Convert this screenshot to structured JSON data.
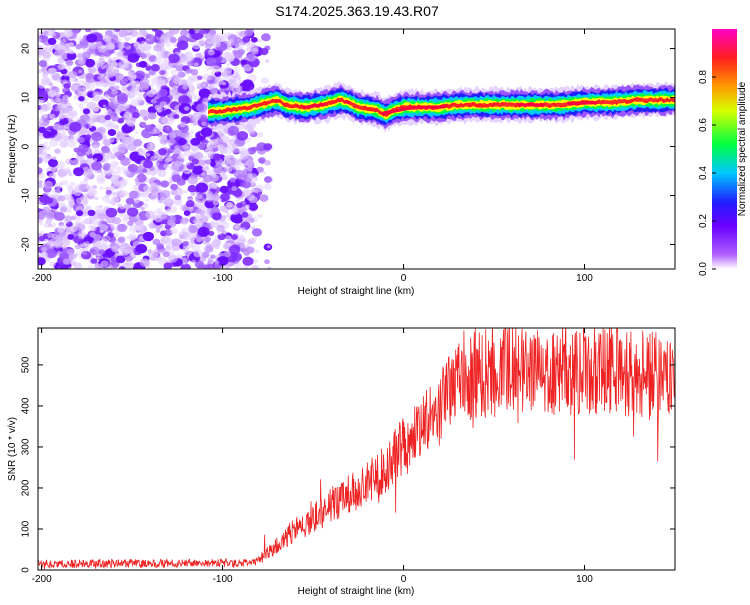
{
  "title": "S174.2025.363.19.43.R07",
  "chart_data": [
    {
      "type": "heatmap",
      "xlabel": "Height of straight line (km)",
      "ylabel": "Frequency (Hz)",
      "xlim": [
        -202,
        150
      ],
      "ylim": [
        -25,
        24
      ],
      "xticks": [
        -200,
        -100,
        0,
        100
      ],
      "yticks": [
        -20,
        -10,
        0,
        10,
        20
      ],
      "colorbar": {
        "label": "Normalized spectral amplitude",
        "range": [
          0,
          1
        ],
        "ticks": [
          "0.0",
          "0.2",
          "0.4",
          "0.6",
          "0.8"
        ],
        "colors": [
          "#ffffff",
          "#9b00ff",
          "#2a00ff",
          "#00c8ff",
          "#00ff40",
          "#ffff00",
          "#ff7f00",
          "#ff0000",
          "#ff00ff"
        ]
      },
      "noise_region_km": [
        -202,
        -82
      ],
      "carrier_track": {
        "x": [
          -108,
          -95,
          -85,
          -80,
          -70,
          -65,
          -55,
          -45,
          -35,
          -30,
          -25,
          -15,
          -10,
          -5,
          0,
          10,
          20,
          30,
          40,
          55,
          70,
          85,
          100,
          115,
          130,
          150
        ],
        "y": [
          7.0,
          7.5,
          8.0,
          8.5,
          9.5,
          8.5,
          8.0,
          8.5,
          9.5,
          9.0,
          8.0,
          7.5,
          6.5,
          7.5,
          8.0,
          8.0,
          8.0,
          8.5,
          8.5,
          8.5,
          8.5,
          8.5,
          9.0,
          9.0,
          9.5,
          9.5
        ]
      }
    },
    {
      "type": "line",
      "xlabel": "Height of straight line (km)",
      "ylabel": "SNR (10 * v/v)",
      "xlim": [
        -202,
        150
      ],
      "ylim": [
        0,
        590
      ],
      "xticks": [
        -200,
        -100,
        0,
        100
      ],
      "yticks": [
        0,
        100,
        200,
        300,
        400,
        500
      ],
      "series": [
        {
          "name": "SNR",
          "color": "#ee2222",
          "x": [
            -202,
            -180,
            -160,
            -140,
            -120,
            -100,
            -85,
            -80,
            -75,
            -70,
            -65,
            -60,
            -55,
            -50,
            -45,
            -40,
            -30,
            -20,
            -10,
            0,
            10,
            20,
            25,
            30,
            35,
            40,
            50,
            60,
            70,
            80,
            90,
            100,
            110,
            120,
            130,
            140,
            150
          ],
          "values": [
            15,
            15,
            16,
            16,
            17,
            17,
            18,
            25,
            40,
            60,
            80,
            100,
            110,
            125,
            140,
            160,
            185,
            210,
            250,
            300,
            340,
            390,
            420,
            450,
            470,
            480,
            485,
            490,
            490,
            495,
            490,
            490,
            485,
            480,
            475,
            470,
            470
          ]
        }
      ]
    }
  ]
}
